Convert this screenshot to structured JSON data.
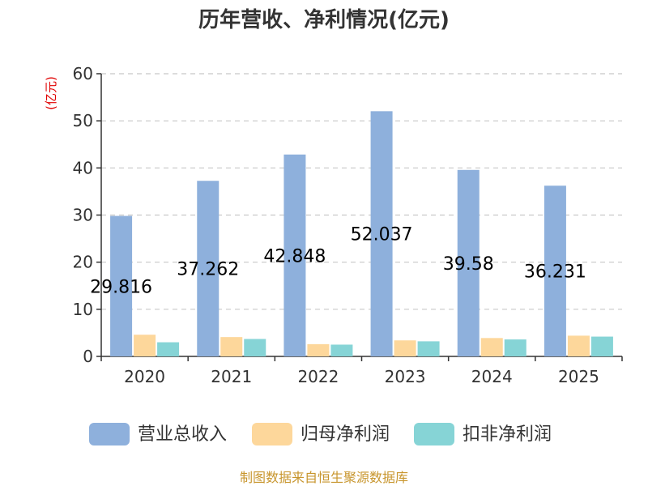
{
  "chart_data": {
    "type": "bar",
    "title": "历年营收、净利情况(亿元)",
    "unit_label": "(亿元)",
    "categories": [
      "2020",
      "2021",
      "2022",
      "2023",
      "2024",
      "2025"
    ],
    "ylim": [
      0,
      60
    ],
    "yticks": [
      0,
      10,
      20,
      30,
      40,
      50,
      60
    ],
    "grid": true,
    "legend_position": "bottom",
    "series": [
      {
        "name": "营业总收入",
        "color": "#8eb0dc",
        "values": [
          29.816,
          37.262,
          42.848,
          52.037,
          39.58,
          36.231
        ],
        "labels": [
          "29.816",
          "37.262",
          "42.848",
          "52.037",
          "39.58",
          "36.231"
        ]
      },
      {
        "name": "归母净利润",
        "color": "#fdd79b",
        "values": [
          4.6,
          4.1,
          2.6,
          3.4,
          3.9,
          4.4
        ]
      },
      {
        "name": "扣非净利润",
        "color": "#86d4d6",
        "values": [
          3.0,
          3.7,
          2.5,
          3.2,
          3.6,
          4.2
        ]
      }
    ],
    "source": "制图数据来自恒生聚源数据库"
  }
}
